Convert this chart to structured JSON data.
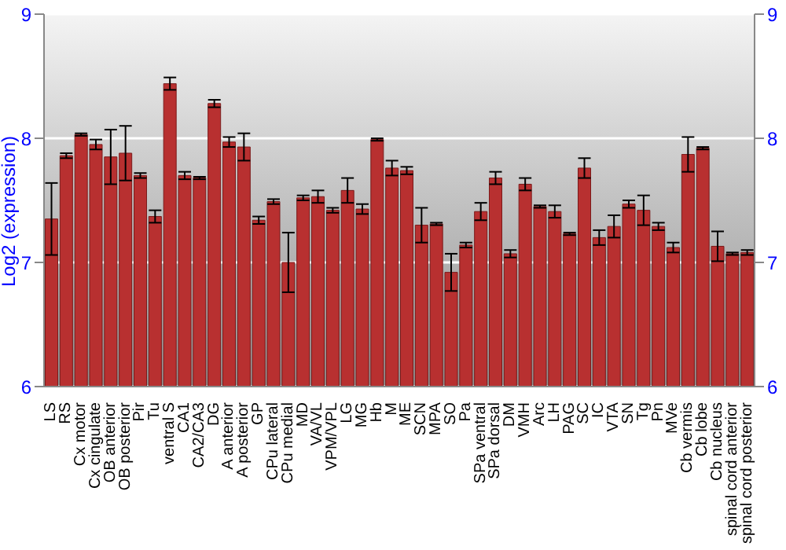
{
  "chart_data": {
    "type": "bar",
    "ylabel": "Log2 (expression)",
    "categories": [
      "LS",
      "RS",
      "Cx motor",
      "Cx cingulate",
      "OB anterior",
      "OB posterior",
      "Pir",
      "Tu",
      "ventral S",
      "CA1",
      "CA2/CA3",
      "DG",
      "A anterior",
      "A posterior",
      "GP",
      "CPu lateral",
      "CPu medial",
      "MD",
      "VA/VL",
      "VPM/VPL",
      "LG",
      "MG",
      "Hb",
      "M",
      "ME",
      "SCN",
      "MPA",
      "SO",
      "Pa",
      "SPa ventral",
      "SPa dorsal",
      "DM",
      "VMH",
      "Arc",
      "LH",
      "PAG",
      "SC",
      "IC",
      "VTA",
      "SN",
      "Tg",
      "Pn",
      "MVe",
      "Cb vermis",
      "Cb lobe",
      "Cb nucleus",
      "spinal cord anterior",
      "spinal cord posterior"
    ],
    "values": [
      7.35,
      7.86,
      8.03,
      7.95,
      7.85,
      7.88,
      7.7,
      7.37,
      8.44,
      7.7,
      7.68,
      8.28,
      7.97,
      7.93,
      7.34,
      7.49,
      7.0,
      7.52,
      7.53,
      7.42,
      7.58,
      7.43,
      7.99,
      7.76,
      7.74,
      7.3,
      7.31,
      6.92,
      7.14,
      7.41,
      7.68,
      7.07,
      7.63,
      7.45,
      7.41,
      7.23,
      7.76,
      7.2,
      7.29,
      7.47,
      7.42,
      7.29,
      7.12,
      7.87,
      7.92,
      7.13,
      7.07,
      7.08
    ],
    "errors": [
      0.29,
      0.02,
      0.01,
      0.04,
      0.22,
      0.22,
      0.02,
      0.05,
      0.05,
      0.03,
      0.01,
      0.03,
      0.04,
      0.11,
      0.03,
      0.02,
      0.24,
      0.02,
      0.05,
      0.02,
      0.1,
      0.04,
      0.01,
      0.06,
      0.03,
      0.14,
      0.01,
      0.15,
      0.02,
      0.07,
      0.05,
      0.03,
      0.05,
      0.01,
      0.05,
      0.01,
      0.08,
      0.06,
      0.09,
      0.03,
      0.12,
      0.03,
      0.04,
      0.14,
      0.01,
      0.12,
      0.01,
      0.02
    ],
    "color": "#b83030",
    "ylim": [
      6,
      9
    ],
    "yticks": [
      6,
      7,
      8,
      9
    ],
    "y2lim": [
      6,
      9
    ],
    "y2ticks": [
      6,
      7,
      8,
      9
    ],
    "grid": "y"
  }
}
